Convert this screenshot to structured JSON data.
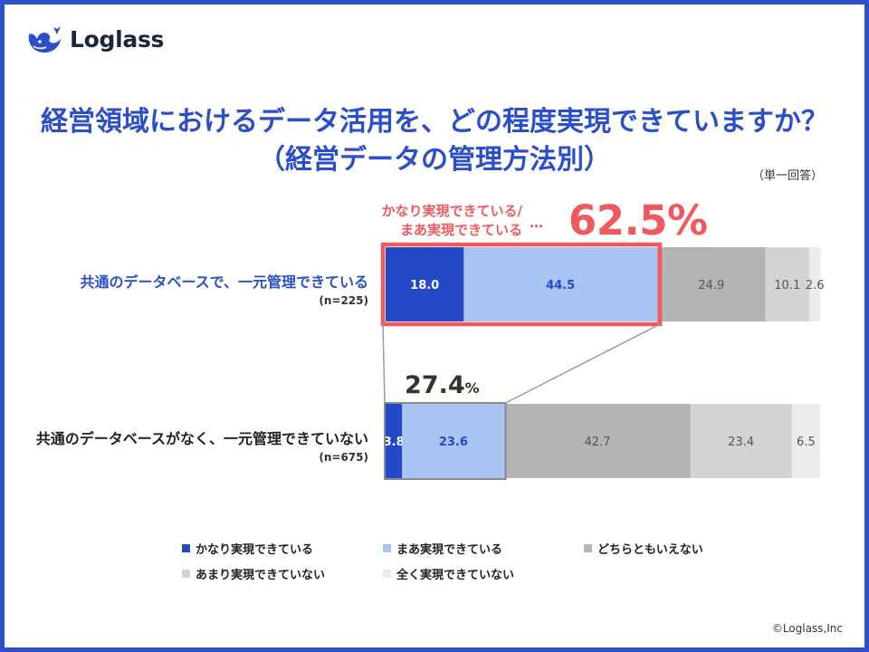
{
  "brand": {
    "name": "Loglass"
  },
  "title": {
    "line1": "経営領域におけるデータ活用を、どの程度実現できていますか？",
    "line2": "（経営データの管理方法別）"
  },
  "note": "（単一回答）",
  "callout": {
    "line1": "かなり実現できている/",
    "line2": "まあ実現できている",
    "dots": "…",
    "value": "62.5%"
  },
  "sub_callout": {
    "value": "27.4",
    "unit": "%"
  },
  "rows": [
    {
      "label": "共通のデータベースで、一元管理できている",
      "n": "(n=225)"
    },
    {
      "label": "共通のデータベースがなく、一元管理できていない",
      "n": "(n=675)"
    }
  ],
  "chart_data": {
    "type": "bar",
    "orientation": "horizontal",
    "stacked": true,
    "unit": "%",
    "categories": [
      "共通のデータベースで、一元管理できている",
      "共通のデータベースがなく、一元管理できていない"
    ],
    "series": [
      {
        "name": "かなり実現できている",
        "values": [
          18.0,
          3.8
        ],
        "labels": [
          "18.0",
          "3.8"
        ],
        "color": "#2449c7",
        "label_color": "#ffffff"
      },
      {
        "name": "まあ実現できている",
        "values": [
          44.5,
          23.6
        ],
        "labels": [
          "44.5",
          "23.6"
        ],
        "color": "#a9c4f3",
        "label_color": "#2449c7"
      },
      {
        "name": "どちらともいえない",
        "values": [
          24.9,
          42.7
        ],
        "labels": [
          "24.9",
          "42.7"
        ],
        "color": "#b4b4b4",
        "label_color": "#555555"
      },
      {
        "name": "あまり実現できていない",
        "values": [
          10.1,
          23.4
        ],
        "labels": [
          "10.1",
          "23.4"
        ],
        "color": "#d3d3d3",
        "label_color": "#555555"
      },
      {
        "name": "全く実現できていない",
        "values": [
          2.6,
          6.5
        ],
        "labels": [
          "2.6",
          "6.5"
        ],
        "color": "#ececec",
        "label_color": "#555555"
      }
    ],
    "xlim": [
      0,
      100
    ],
    "grid": false,
    "legend": "bottom",
    "highlight": [
      {
        "row": 0,
        "series": [
          0,
          1
        ],
        "total": 62.5,
        "color": "#f05a5e"
      },
      {
        "row": 1,
        "series": [
          0,
          1
        ],
        "total": 27.4,
        "color": "#8a8a8a"
      }
    ]
  },
  "copyright": "©Loglass,Inc"
}
